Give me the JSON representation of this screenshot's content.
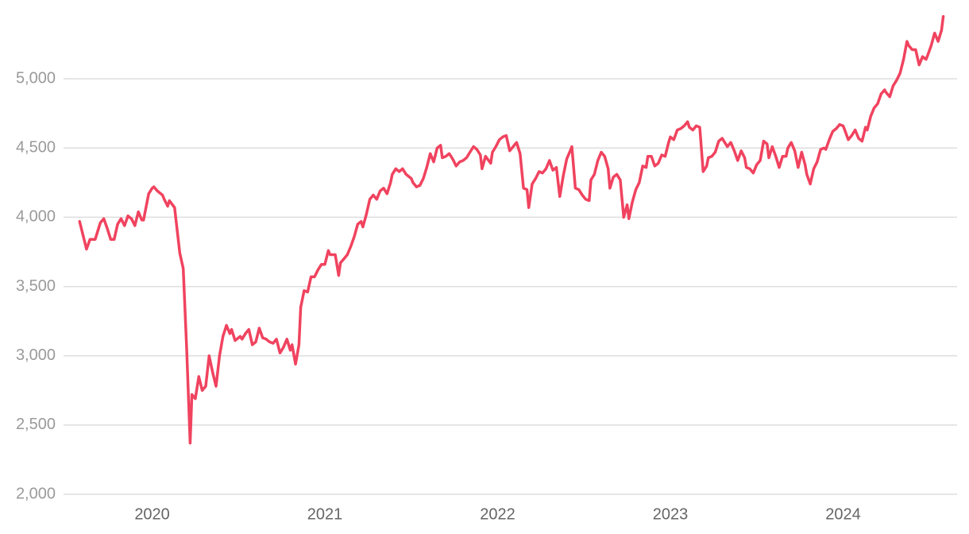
{
  "chart_data": {
    "type": "line",
    "x": [
      2019.58,
      2019.62,
      2019.64,
      2019.67,
      2019.7,
      2019.72,
      2019.74,
      2019.76,
      2019.78,
      2019.8,
      2019.82,
      2019.84,
      2019.86,
      2019.88,
      2019.9,
      2019.92,
      2019.94,
      2019.95,
      2019.98,
      2020.0,
      2020.01,
      2020.03,
      2020.06,
      2020.07,
      2020.09,
      2020.1,
      2020.13,
      2020.16,
      2020.18,
      2020.2,
      2020.22,
      2020.23,
      2020.25,
      2020.27,
      2020.29,
      2020.31,
      2020.33,
      2020.35,
      2020.37,
      2020.39,
      2020.41,
      2020.43,
      2020.45,
      2020.46,
      2020.48,
      2020.51,
      2020.52,
      2020.54,
      2020.56,
      2020.58,
      2020.6,
      2020.62,
      2020.64,
      2020.66,
      2020.68,
      2020.7,
      2020.72,
      2020.74,
      2020.76,
      2020.78,
      2020.8,
      2020.81,
      2020.83,
      2020.85,
      2020.86,
      2020.88,
      2020.9,
      2020.92,
      2020.94,
      2020.96,
      2020.98,
      2021.0,
      2021.02,
      2021.03,
      2021.06,
      2021.08,
      2021.09,
      2021.11,
      2021.13,
      2021.15,
      2021.17,
      2021.19,
      2021.21,
      2021.22,
      2021.24,
      2021.26,
      2021.28,
      2021.3,
      2021.32,
      2021.34,
      2021.36,
      2021.38,
      2021.39,
      2021.41,
      2021.43,
      2021.45,
      2021.47,
      2021.5,
      2021.51,
      2021.53,
      2021.55,
      2021.57,
      2021.59,
      2021.61,
      2021.63,
      2021.65,
      2021.67,
      2021.68,
      2021.7,
      2021.72,
      2021.74,
      2021.76,
      2021.78,
      2021.8,
      2021.82,
      2021.84,
      2021.86,
      2021.88,
      2021.9,
      2021.91,
      2021.93,
      2021.96,
      2021.97,
      2021.99,
      2022.01,
      2022.03,
      2022.05,
      2022.07,
      2022.09,
      2022.11,
      2022.13,
      2022.15,
      2022.17,
      2022.18,
      2022.2,
      2022.22,
      2022.24,
      2022.26,
      2022.28,
      2022.3,
      2022.32,
      2022.34,
      2022.36,
      2022.38,
      2022.4,
      2022.42,
      2022.43,
      2022.45,
      2022.47,
      2022.49,
      2022.51,
      2022.53,
      2022.54,
      2022.56,
      2022.58,
      2022.6,
      2022.62,
      2022.64,
      2022.65,
      2022.67,
      2022.69,
      2022.71,
      2022.73,
      2022.75,
      2022.76,
      2022.78,
      2022.8,
      2022.82,
      2022.84,
      2022.86,
      2022.87,
      2022.89,
      2022.91,
      2022.93,
      2022.95,
      2022.97,
      2022.99,
      2023.0,
      2023.02,
      2023.04,
      2023.06,
      2023.08,
      2023.1,
      2023.11,
      2023.13,
      2023.15,
      2023.17,
      2023.19,
      2023.21,
      2023.22,
      2023.24,
      2023.26,
      2023.28,
      2023.3,
      2023.32,
      2023.33,
      2023.35,
      2023.37,
      2023.39,
      2023.41,
      2023.43,
      2023.44,
      2023.46,
      2023.48,
      2023.5,
      2023.52,
      2023.54,
      2023.56,
      2023.57,
      2023.59,
      2023.61,
      2023.63,
      2023.65,
      2023.67,
      2023.68,
      2023.7,
      2023.72,
      2023.74,
      2023.76,
      2023.78,
      2023.79,
      2023.81,
      2023.83,
      2023.85,
      2023.87,
      2023.89,
      2023.9,
      2023.92,
      2023.94,
      2023.96,
      2023.98,
      2024.0,
      2024.01,
      2024.03,
      2024.05,
      2024.07,
      2024.09,
      2024.11,
      2024.13,
      2024.14,
      2024.16,
      2024.18,
      2024.2,
      2024.22,
      2024.24,
      2024.25,
      2024.27,
      2024.29,
      2024.31,
      2024.33,
      2024.35,
      2024.37,
      2024.38,
      2024.4,
      2024.42,
      2024.44,
      2024.46,
      2024.48,
      2024.49,
      2024.51,
      2024.53,
      2024.55,
      2024.57,
      2024.58
    ],
    "values": [
      3970,
      3770,
      3840,
      3840,
      3960,
      3990,
      3920,
      3840,
      3840,
      3950,
      3990,
      3940,
      4010,
      3990,
      3940,
      4040,
      3980,
      3980,
      4170,
      4210,
      4220,
      4190,
      4160,
      4130,
      4080,
      4120,
      4070,
      3740,
      3630,
      3040,
      2370,
      2720,
      2690,
      2850,
      2750,
      2780,
      3000,
      2880,
      2780,
      3000,
      3140,
      3220,
      3160,
      3190,
      3110,
      3140,
      3120,
      3160,
      3190,
      3080,
      3100,
      3200,
      3130,
      3120,
      3100,
      3090,
      3120,
      3020,
      3060,
      3120,
      3040,
      3080,
      2940,
      3080,
      3350,
      3470,
      3460,
      3570,
      3570,
      3620,
      3660,
      3660,
      3760,
      3730,
      3730,
      3580,
      3670,
      3700,
      3730,
      3790,
      3860,
      3950,
      3970,
      3930,
      4020,
      4130,
      4160,
      4130,
      4190,
      4210,
      4170,
      4250,
      4310,
      4350,
      4330,
      4350,
      4310,
      4280,
      4250,
      4220,
      4230,
      4280,
      4360,
      4460,
      4400,
      4500,
      4520,
      4430,
      4440,
      4460,
      4420,
      4370,
      4400,
      4410,
      4430,
      4470,
      4510,
      4490,
      4450,
      4350,
      4440,
      4390,
      4470,
      4510,
      4560,
      4580,
      4590,
      4480,
      4510,
      4540,
      4460,
      4210,
      4200,
      4070,
      4240,
      4280,
      4330,
      4320,
      4350,
      4410,
      4340,
      4360,
      4150,
      4300,
      4420,
      4480,
      4510,
      4210,
      4200,
      4160,
      4130,
      4120,
      4270,
      4310,
      4410,
      4470,
      4440,
      4350,
      4210,
      4290,
      4310,
      4270,
      4000,
      4090,
      3990,
      4110,
      4200,
      4250,
      4370,
      4360,
      4440,
      4440,
      4370,
      4390,
      4450,
      4440,
      4540,
      4580,
      4560,
      4630,
      4640,
      4660,
      4690,
      4650,
      4630,
      4660,
      4650,
      4330,
      4370,
      4430,
      4440,
      4470,
      4550,
      4570,
      4530,
      4510,
      4540,
      4480,
      4410,
      4480,
      4430,
      4360,
      4350,
      4320,
      4380,
      4410,
      4550,
      4530,
      4430,
      4510,
      4440,
      4360,
      4440,
      4440,
      4500,
      4540,
      4480,
      4360,
      4470,
      4380,
      4310,
      4240,
      4350,
      4400,
      4490,
      4500,
      4490,
      4560,
      4620,
      4640,
      4670,
      4660,
      4630,
      4560,
      4590,
      4630,
      4570,
      4550,
      4650,
      4630,
      4730,
      4790,
      4820,
      4890,
      4920,
      4900,
      4870,
      4950,
      4990,
      5040,
      5140,
      5270,
      5240,
      5210,
      5210,
      5100,
      5160,
      5140,
      5170,
      5240,
      5330,
      5270,
      5350,
      5450
    ],
    "color": "#f0435f",
    "xlim": [
      2019.51,
      2024.66
    ],
    "xticks": [
      2020,
      2021,
      2022,
      2023,
      2024
    ],
    "ylim": [
      2000,
      5500
    ],
    "yticks": [
      {
        "value": 2000,
        "label": "2,000"
      },
      {
        "value": 2500,
        "label": "2,500"
      },
      {
        "value": 3000,
        "label": "3,000"
      },
      {
        "value": 3500,
        "label": "3,500"
      },
      {
        "value": 4000,
        "label": "4,000"
      },
      {
        "value": 4500,
        "label": "4,500"
      },
      {
        "value": 5000,
        "label": "5,000"
      }
    ],
    "grid": true
  }
}
